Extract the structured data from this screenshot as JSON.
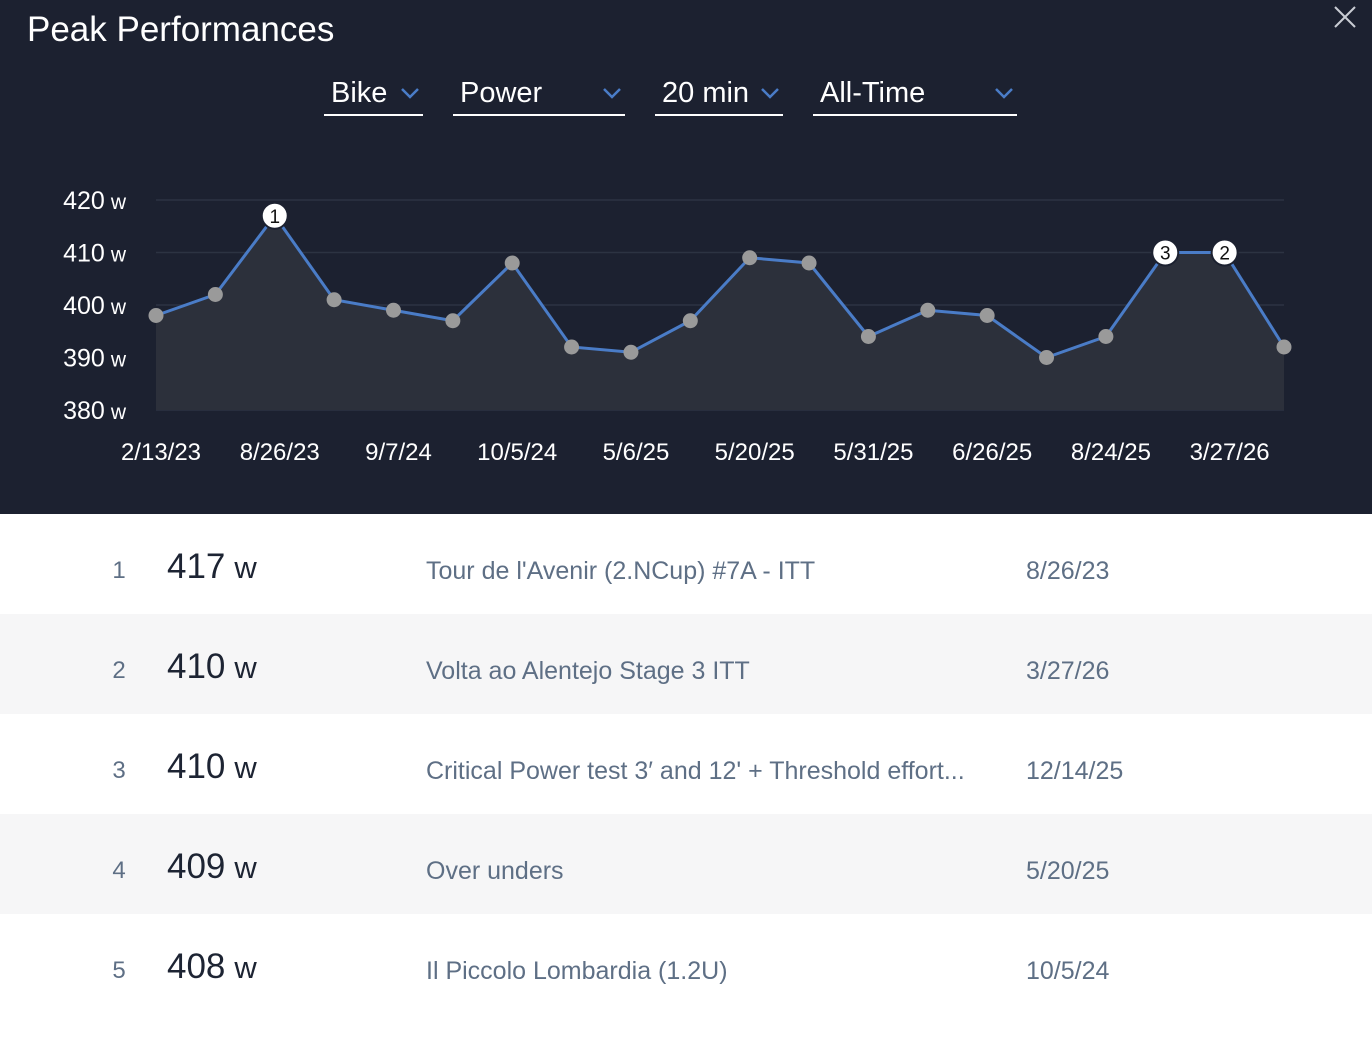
{
  "header": {
    "title": "Peak Performances"
  },
  "filters": {
    "sport": "Bike",
    "metric": "Power",
    "duration": "20 min",
    "range": "All-Time"
  },
  "icons": {
    "close": "close-icon",
    "dropdown": "chevron-down-icon"
  },
  "colors": {
    "panel_bg": "#1c2130",
    "line": "#4a7cc7",
    "point": "#9a9a9a",
    "marker_bg": "#ffffff"
  },
  "chart_data": {
    "type": "line",
    "ylim": [
      380,
      420
    ],
    "ytick_labels": [
      {
        "value": 420,
        "num": "420",
        "unit": "w"
      },
      {
        "value": 410,
        "num": "410",
        "unit": "w"
      },
      {
        "value": 400,
        "num": "400",
        "unit": "w"
      },
      {
        "value": 390,
        "num": "390",
        "unit": "w"
      },
      {
        "value": 380,
        "num": "380",
        "unit": "w"
      }
    ],
    "x_tick_labels": [
      "2/13/23",
      "8/26/23",
      "9/7/24",
      "10/5/24",
      "5/6/25",
      "5/20/25",
      "5/31/25",
      "6/26/25",
      "8/24/25",
      "3/27/26"
    ],
    "x_tick_positions": [
      0,
      2,
      4,
      6,
      8,
      10,
      12,
      14,
      16,
      18
    ],
    "values": [
      398,
      402,
      417,
      401,
      399,
      397,
      408,
      392,
      391,
      397,
      409,
      408,
      394,
      399,
      398,
      390,
      394,
      410,
      410,
      392
    ],
    "ranked_markers": [
      {
        "index": 2,
        "label": "1"
      },
      {
        "index": 17,
        "label": "3"
      },
      {
        "index": 18,
        "label": "2"
      }
    ],
    "grid": true
  },
  "rows": [
    {
      "rank": "1",
      "power": "417",
      "unit": "w",
      "event": "Tour de l'Avenir (2.NCup) #7A - ITT",
      "date": "8/26/23"
    },
    {
      "rank": "2",
      "power": "410",
      "unit": "w",
      "event": "Volta ao Alentejo Stage 3 ITT",
      "date": "3/27/26"
    },
    {
      "rank": "3",
      "power": "410",
      "unit": "w",
      "event": "Critical Power test 3′ and 12' + Threshold effort...",
      "date": "12/14/25"
    },
    {
      "rank": "4",
      "power": "409",
      "unit": "w",
      "event": "Over unders",
      "date": "5/20/25"
    },
    {
      "rank": "5",
      "power": "408",
      "unit": "w",
      "event": "Il Piccolo Lombardia (1.2U)",
      "date": "10/5/24"
    }
  ]
}
